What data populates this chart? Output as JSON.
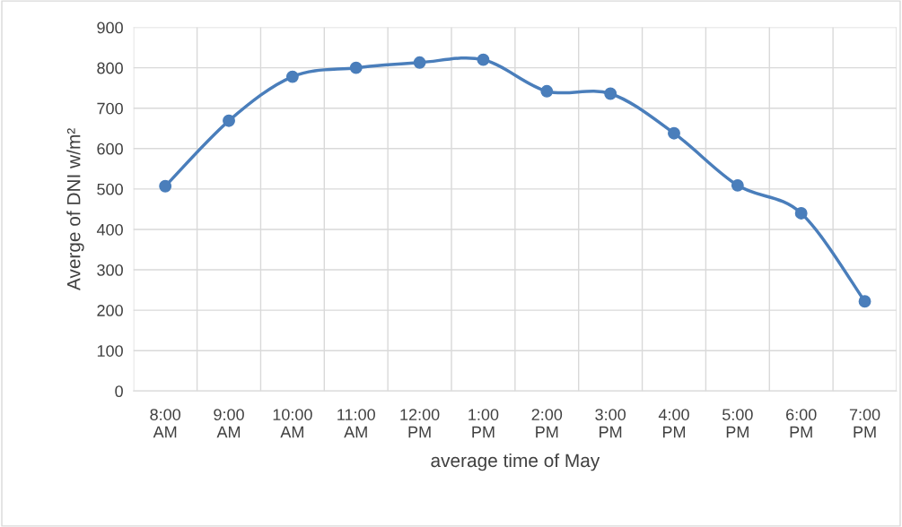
{
  "chart_data": {
    "type": "line",
    "xlabel": "average time of May",
    "ylabel": "Averge of DNI w/m²",
    "categories": [
      "8:00\nAM",
      "9:00\nAM",
      "10:00\nAM",
      "11:00\nAM",
      "12:00\nPM",
      "1:00\nPM",
      "2:00\nPM",
      "3:00\nPM",
      "4:00\nPM",
      "5:00\nPM",
      "6:00\nPM",
      "7:00\nPM"
    ],
    "series": [
      {
        "color": "#4a7ebb",
        "values": [
          507,
          669,
          778,
          800,
          813,
          820,
          742,
          736,
          638,
          509,
          440,
          222
        ]
      }
    ],
    "ylim": [
      0,
      900
    ],
    "yticks": [
      0,
      100,
      200,
      300,
      400,
      500,
      600,
      700,
      800,
      900
    ],
    "grid": true,
    "marker": "circle",
    "line_style": "solid"
  }
}
